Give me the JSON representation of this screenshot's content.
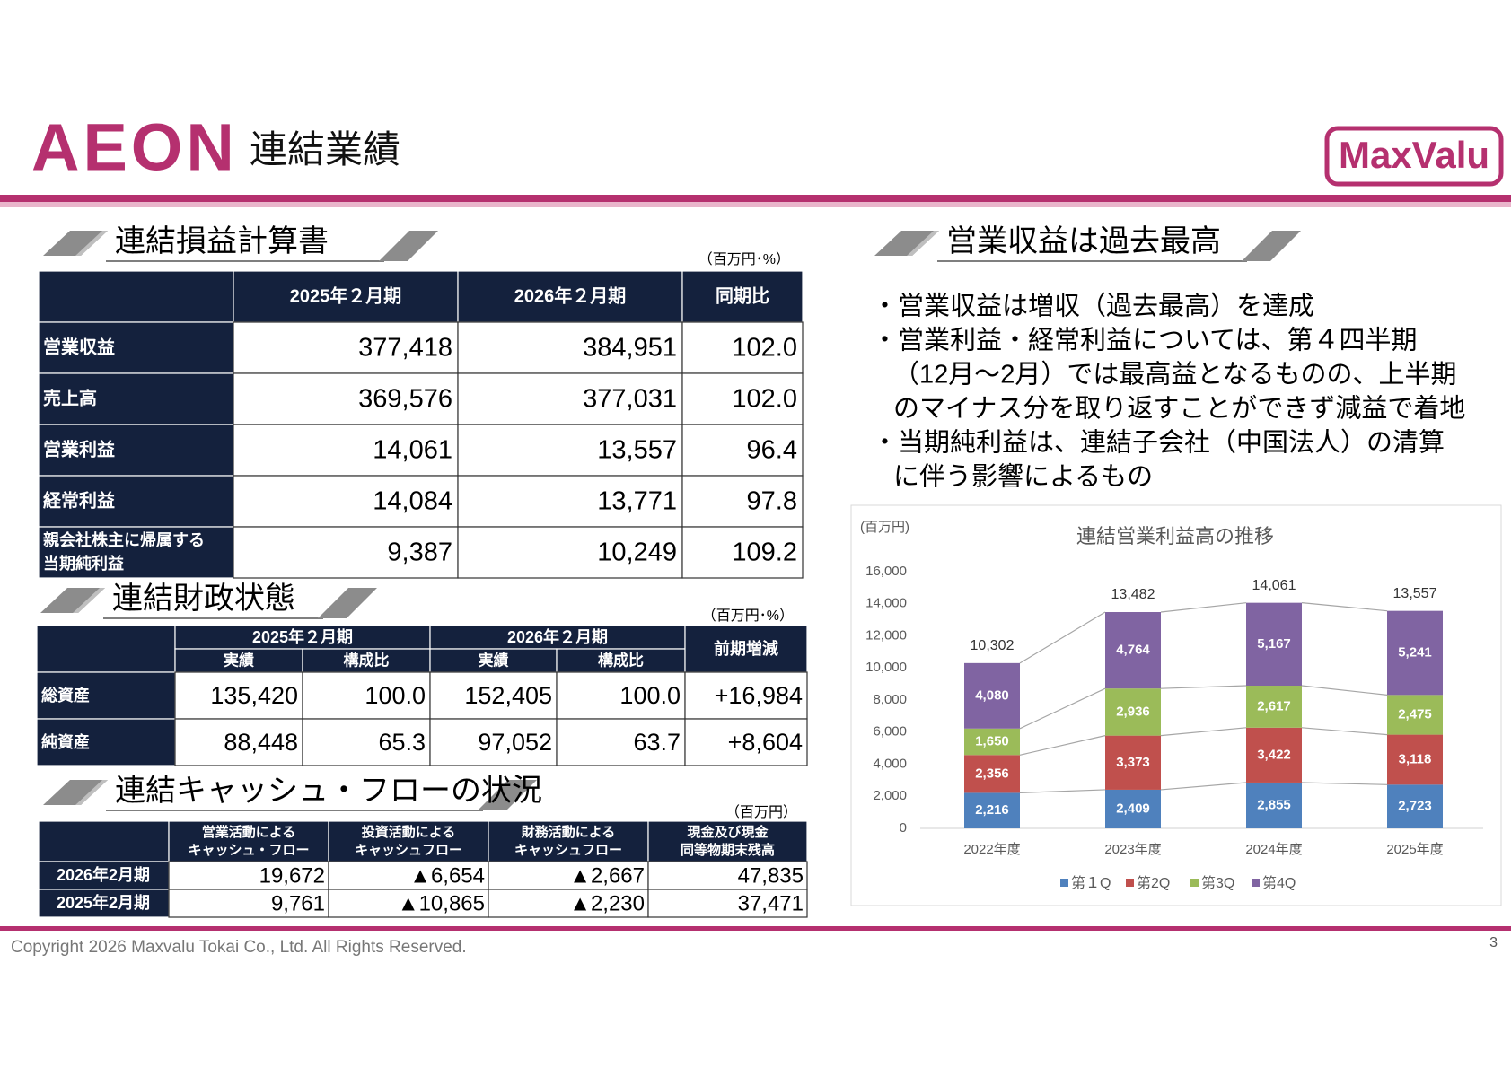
{
  "header": {
    "logo_left": "AEON",
    "title": "連結業績",
    "logo_right": "MaxValu"
  },
  "income": {
    "title": "連結損益計算書",
    "unit": "（百万円･%）",
    "headers": [
      "2025年２月期",
      "2026年２月期",
      "同期比"
    ],
    "rows": [
      {
        "label": [
          "営業収益"
        ],
        "cells": [
          "377,418",
          "384,951",
          "102.0"
        ]
      },
      {
        "label": [
          "売上高"
        ],
        "cells": [
          "369,576",
          "377,031",
          "102.0"
        ]
      },
      {
        "label": [
          "営業利益"
        ],
        "cells": [
          "14,061",
          "13,557",
          "96.4"
        ]
      },
      {
        "label": [
          "経常利益"
        ],
        "cells": [
          "14,084",
          "13,771",
          "97.8"
        ]
      },
      {
        "label": [
          "親会社株主に帰属する",
          "当期純利益"
        ],
        "cells": [
          "9,387",
          "10,249",
          "109.2"
        ]
      }
    ]
  },
  "balance": {
    "title": "連結財政状態",
    "unit": "（百万円･%）",
    "groups": [
      "2025年２月期",
      "2026年２月期"
    ],
    "subheaders": [
      "実績",
      "構成比",
      "実績",
      "構成比"
    ],
    "last_header": "前期増減",
    "rows": [
      {
        "label": "総資産",
        "cells": [
          "135,420",
          "100.0",
          "152,405",
          "100.0",
          "+16,984"
        ]
      },
      {
        "label": "純資産",
        "cells": [
          "88,448",
          "65.3",
          "97,052",
          "63.7",
          "+8,604"
        ]
      }
    ]
  },
  "cashflow": {
    "title": "連結キャッシュ・フローの状況",
    "unit": "（百万円）",
    "headers": [
      [
        "営業活動による",
        "キャッシュ・フロー"
      ],
      [
        "投資活動による",
        "キャッシュフロー"
      ],
      [
        "財務活動による",
        "キャッシュフロー"
      ],
      [
        "現金及び現金",
        "同等物期末残高"
      ]
    ],
    "rows": [
      {
        "label": "2026年2月期",
        "cells": [
          "19,672",
          "▲6,654",
          "▲2,667",
          "47,835"
        ]
      },
      {
        "label": "2025年2月期",
        "cells": [
          "9,761",
          "▲10,865",
          "▲2,230",
          "37,471"
        ]
      }
    ]
  },
  "highlights": {
    "title": "営業収益は過去最高",
    "lines": [
      "・営業収益は増収（過去最高）を達成",
      "・営業利益・経常利益については、第４四半期",
      "（12月～2月）では最高益となるものの、上半期",
      "のマイナス分を取り返すことができず減益で着地",
      "・当期純利益は、連結子会社（中国法人）の清算",
      "に伴う影響によるもの"
    ]
  },
  "chart_data": {
    "type": "bar",
    "stacked": true,
    "title": "連結営業利益高の推移",
    "y_label": "(百万円)",
    "categories": [
      "2022年度",
      "2023年度",
      "2024年度",
      "2025年度"
    ],
    "series": [
      {
        "name": "第１Q",
        "color": "#4f81bd",
        "values": [
          2216,
          2409,
          2855,
          2723
        ],
        "value_labels": [
          "2,216",
          "2,409",
          "2,855",
          "2,723"
        ]
      },
      {
        "name": "第2Q",
        "color": "#c0504d",
        "values": [
          2356,
          3373,
          3422,
          3118
        ],
        "value_labels": [
          "2,356",
          "3,373",
          "3,422",
          "3,118"
        ]
      },
      {
        "name": "第3Q",
        "color": "#9bbb59",
        "values": [
          1650,
          2936,
          2617,
          2475
        ],
        "value_labels": [
          "1,650",
          "2,936",
          "2,617",
          "2,475"
        ]
      },
      {
        "name": "第4Q",
        "color": "#8064a2",
        "values": [
          4080,
          4764,
          5167,
          5241
        ],
        "value_labels": [
          "4,080",
          "4,764",
          "5,167",
          "5,241"
        ]
      }
    ],
    "totals": {
      "values": [
        10302,
        13482,
        14061,
        13557
      ],
      "value_labels": [
        "10,302",
        "13,482",
        "14,061",
        "13,557"
      ]
    },
    "ylim": [
      0,
      16000
    ],
    "yticks": [
      0,
      {
        "value": 2000,
        "label": "2,000"
      },
      {
        "value": 4000,
        "label": "4,000"
      },
      {
        "value": 6000,
        "label": "6,000"
      },
      {
        "value": 8000,
        "label": "8,000"
      },
      {
        "value": 10000,
        "label": "10,000"
      },
      {
        "value": 12000,
        "label": "12,000"
      },
      {
        "value": 14000,
        "label": "14,000"
      },
      {
        "value": 16000,
        "label": "16,000"
      }
    ],
    "legend": "bottom"
  },
  "footer": {
    "copyright": "Copyright 2026 Maxvalu Tokai Co., Ltd. All Rights Reserved.",
    "page": "3"
  }
}
